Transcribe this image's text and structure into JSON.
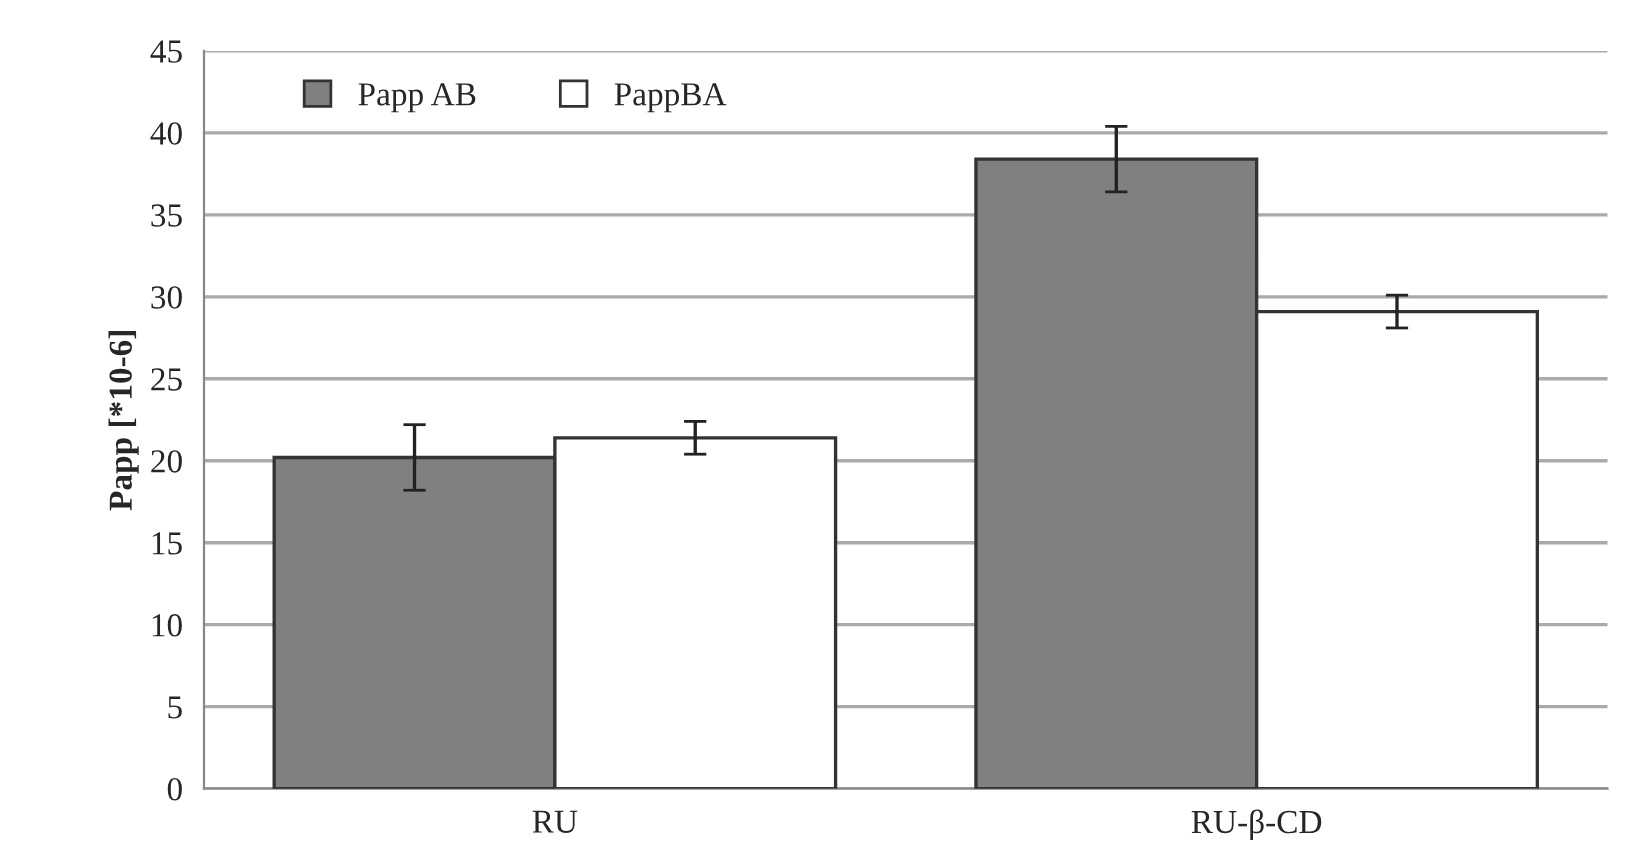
{
  "chart_data": {
    "type": "bar",
    "ylabel": "Papp [*10-6]",
    "categories": [
      "RU",
      "RU-β-CD"
    ],
    "series": [
      {
        "name": "Papp AB",
        "color": "#808080",
        "values": [
          20.2,
          38.4
        ],
        "errors": [
          2.0,
          2.0
        ]
      },
      {
        "name": "PappBA",
        "color": "#ffffff",
        "values": [
          21.4,
          29.1
        ],
        "errors": [
          1.0,
          1.0
        ]
      }
    ],
    "ylim": [
      0,
      45
    ],
    "yticks": [
      0,
      5,
      10,
      15,
      20,
      25,
      30,
      35,
      40,
      45
    ],
    "grid": "y",
    "legend": "top left"
  }
}
